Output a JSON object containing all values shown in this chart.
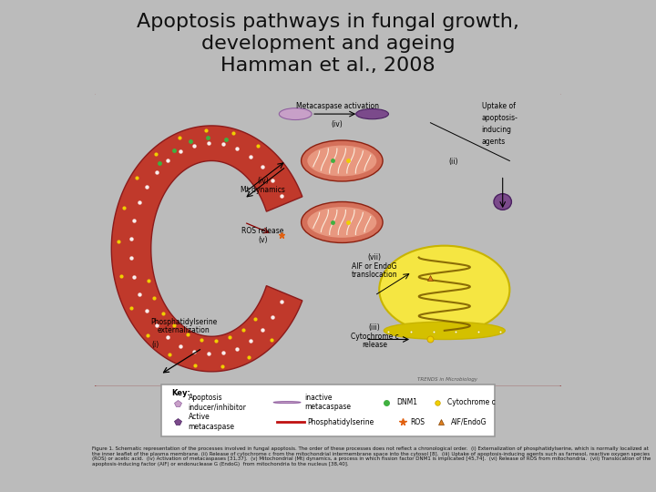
{
  "title_line1": "Apoptosis pathways in fungal growth,",
  "title_line2": "development and ageing",
  "title_line3": "Hamman et al., 2008",
  "title_fontsize": 16,
  "title_color": "#111111",
  "bg_color": "#bbbbbb",
  "panel_bg": "#fffff0",
  "panel_border": "#8b2020",
  "outer_panel_bg": "#ffffff",
  "cell_red": "#c0392b",
  "cell_dark_red": "#8b1a1a",
  "mito_salmon": "#e8a090",
  "nucleus_yellow": "#f5e642",
  "nucleus_border": "#c8b400",
  "label_fs": 5.5,
  "key_fs": 5.5,
  "caption_fs": 4.0,
  "purple_light": "#c8a0c8",
  "purple_dark": "#7b4a8b",
  "green_dot": "#40b040",
  "yellow_dot": "#f0d000",
  "orange_tri": "#e08020",
  "ros_star": "#e06010"
}
